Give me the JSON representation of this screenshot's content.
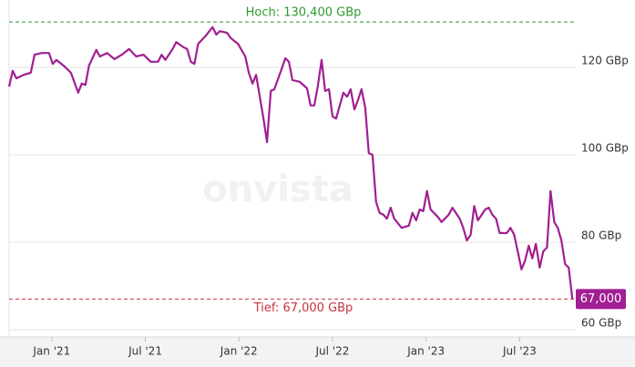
{
  "chart_data": {
    "type": "line",
    "watermark": "onvista",
    "color": "#a01f92",
    "x": [
      2020.772,
      2020.791,
      2020.811,
      2020.85,
      2020.888,
      2020.908,
      2020.947,
      2020.985,
      2021.005,
      2021.024,
      2021.063,
      2021.102,
      2021.141,
      2021.16,
      2021.18,
      2021.199,
      2021.238,
      2021.257,
      2021.296,
      2021.335,
      2021.374,
      2021.413,
      2021.451,
      2021.49,
      2021.529,
      2021.568,
      2021.587,
      2021.607,
      2021.646,
      2021.665,
      2021.704,
      2021.723,
      2021.743,
      2021.762,
      2021.782,
      2021.82,
      2021.859,
      2021.879,
      2021.898,
      2021.937,
      2021.956,
      2021.995,
      2022.034,
      2022.053,
      2022.073,
      2022.092,
      2022.131,
      2022.15,
      2022.17,
      2022.189,
      2022.228,
      2022.248,
      2022.267,
      2022.286,
      2022.325,
      2022.364,
      2022.383,
      2022.403,
      2022.422,
      2022.442,
      2022.461,
      2022.481,
      2022.5,
      2022.519,
      2022.558,
      2022.578,
      2022.597,
      2022.617,
      2022.636,
      2022.655,
      2022.675,
      2022.694,
      2022.714,
      2022.733,
      2022.752,
      2022.772,
      2022.791,
      2022.811,
      2022.83,
      2022.869,
      2022.908,
      2022.927,
      2022.947,
      2022.966,
      2022.985,
      2023.005,
      2023.024,
      2023.063,
      2023.083,
      2023.121,
      2023.141,
      2023.18,
      2023.199,
      2023.218,
      2023.238,
      2023.257,
      2023.277,
      2023.316,
      2023.335,
      2023.354,
      2023.374,
      2023.393,
      2023.432,
      2023.451,
      2023.471,
      2023.49,
      2023.51,
      2023.529,
      2023.549,
      2023.568,
      2023.587,
      2023.607,
      2023.626,
      2023.646,
      2023.665,
      2023.685,
      2023.704,
      2023.723,
      2023.743,
      2023.762,
      2023.782
    ],
    "values": [
      115.6,
      119.2,
      117.5,
      118.3,
      118.8,
      122.9,
      123.3,
      123.3,
      120.8,
      121.7,
      120.4,
      118.8,
      114.2,
      116.3,
      116.0,
      120.4,
      124.0,
      122.5,
      123.3,
      121.9,
      122.9,
      124.2,
      122.5,
      122.9,
      121.3,
      121.3,
      122.9,
      121.7,
      124.2,
      125.8,
      124.6,
      124.2,
      121.3,
      120.8,
      125.4,
      127.1,
      129.2,
      127.5,
      128.3,
      127.9,
      126.7,
      125.4,
      122.5,
      118.8,
      116.3,
      118.3,
      108.3,
      102.9,
      114.6,
      115.0,
      119.6,
      122.1,
      121.3,
      117.1,
      116.7,
      115.2,
      111.3,
      111.3,
      115.8,
      121.7,
      114.6,
      115.0,
      108.8,
      108.3,
      114.2,
      113.3,
      115.0,
      110.4,
      112.5,
      115.0,
      110.8,
      100.4,
      100.0,
      89.2,
      86.7,
      86.3,
      85.4,
      87.9,
      85.4,
      83.3,
      83.8,
      86.7,
      85.0,
      87.5,
      87.1,
      91.7,
      87.5,
      85.8,
      84.6,
      86.3,
      87.9,
      85.4,
      83.3,
      80.4,
      81.7,
      88.3,
      85.0,
      87.5,
      87.9,
      86.3,
      85.4,
      82.1,
      82.1,
      83.3,
      81.7,
      77.9,
      73.8,
      75.8,
      79.2,
      76.3,
      79.6,
      74.2,
      77.9,
      78.8,
      91.7,
      84.6,
      83.3,
      80.4,
      75.0,
      74.2,
      67.0
    ],
    "last_value_label": "67,000",
    "xlim": [
      2020.772,
      2023.8
    ],
    "xticks": [
      {
        "value": 2021,
        "label": "Jan '21"
      },
      {
        "value": 2021.5,
        "label": "Jul '21"
      },
      {
        "value": 2022,
        "label": "Jan '22"
      },
      {
        "value": 2022.5,
        "label": "Jul '22"
      },
      {
        "value": 2023,
        "label": "Jan '23"
      },
      {
        "value": 2023.5,
        "label": "Jul '23"
      }
    ],
    "ylim": [
      58.333,
      135.417
    ],
    "yticks": [
      {
        "value": 60,
        "label": "60 GBp"
      },
      {
        "value": 80,
        "label": "80 GBp"
      },
      {
        "value": 100,
        "label": "100 GBp"
      },
      {
        "value": 120,
        "label": "120 GBp"
      }
    ],
    "grid": true,
    "annotations": [
      {
        "label": "Hoch: 130,400 GBp",
        "value": 130.4,
        "color": "#2e9a2e"
      },
      {
        "label": "Tief: 67,000 GBp",
        "value": 67.0,
        "color": "#c8323c"
      }
    ]
  }
}
